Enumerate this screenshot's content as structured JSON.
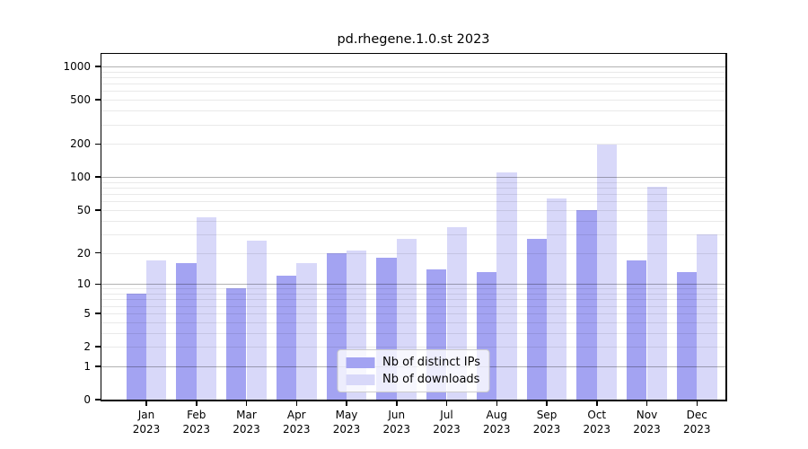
{
  "chart_data": {
    "type": "bar",
    "title": "pd.rhegene.1.0.st 2023",
    "categories": [
      "Jan",
      "Feb",
      "Mar",
      "Apr",
      "May",
      "Jun",
      "Jul",
      "Aug",
      "Sep",
      "Oct",
      "Nov",
      "Dec"
    ],
    "year": "2023",
    "series": [
      {
        "name": "Nb of distinct IPs",
        "color": "#a3a3f2",
        "values": [
          8,
          16,
          9,
          12,
          20,
          18,
          14,
          13,
          27,
          50,
          17,
          13
        ]
      },
      {
        "name": "Nb of downloads",
        "color": "#d8d8f9",
        "values": [
          17,
          43,
          26,
          16,
          21,
          27,
          35,
          110,
          64,
          197,
          82,
          30
        ]
      }
    ],
    "xlabel": "",
    "ylabel": "",
    "y_scale": "log1p",
    "ylim": [
      0,
      1300
    ],
    "y_ticks": [
      0,
      1,
      2,
      5,
      10,
      20,
      50,
      100,
      200,
      500,
      1000
    ],
    "grid": {
      "major_lines": [
        1,
        10,
        100,
        1000
      ],
      "minor_multipliers": [
        2,
        3,
        4,
        5,
        6,
        7,
        8,
        9
      ],
      "minor_decades": [
        1,
        10,
        100
      ]
    },
    "legend_position": "lower center"
  }
}
